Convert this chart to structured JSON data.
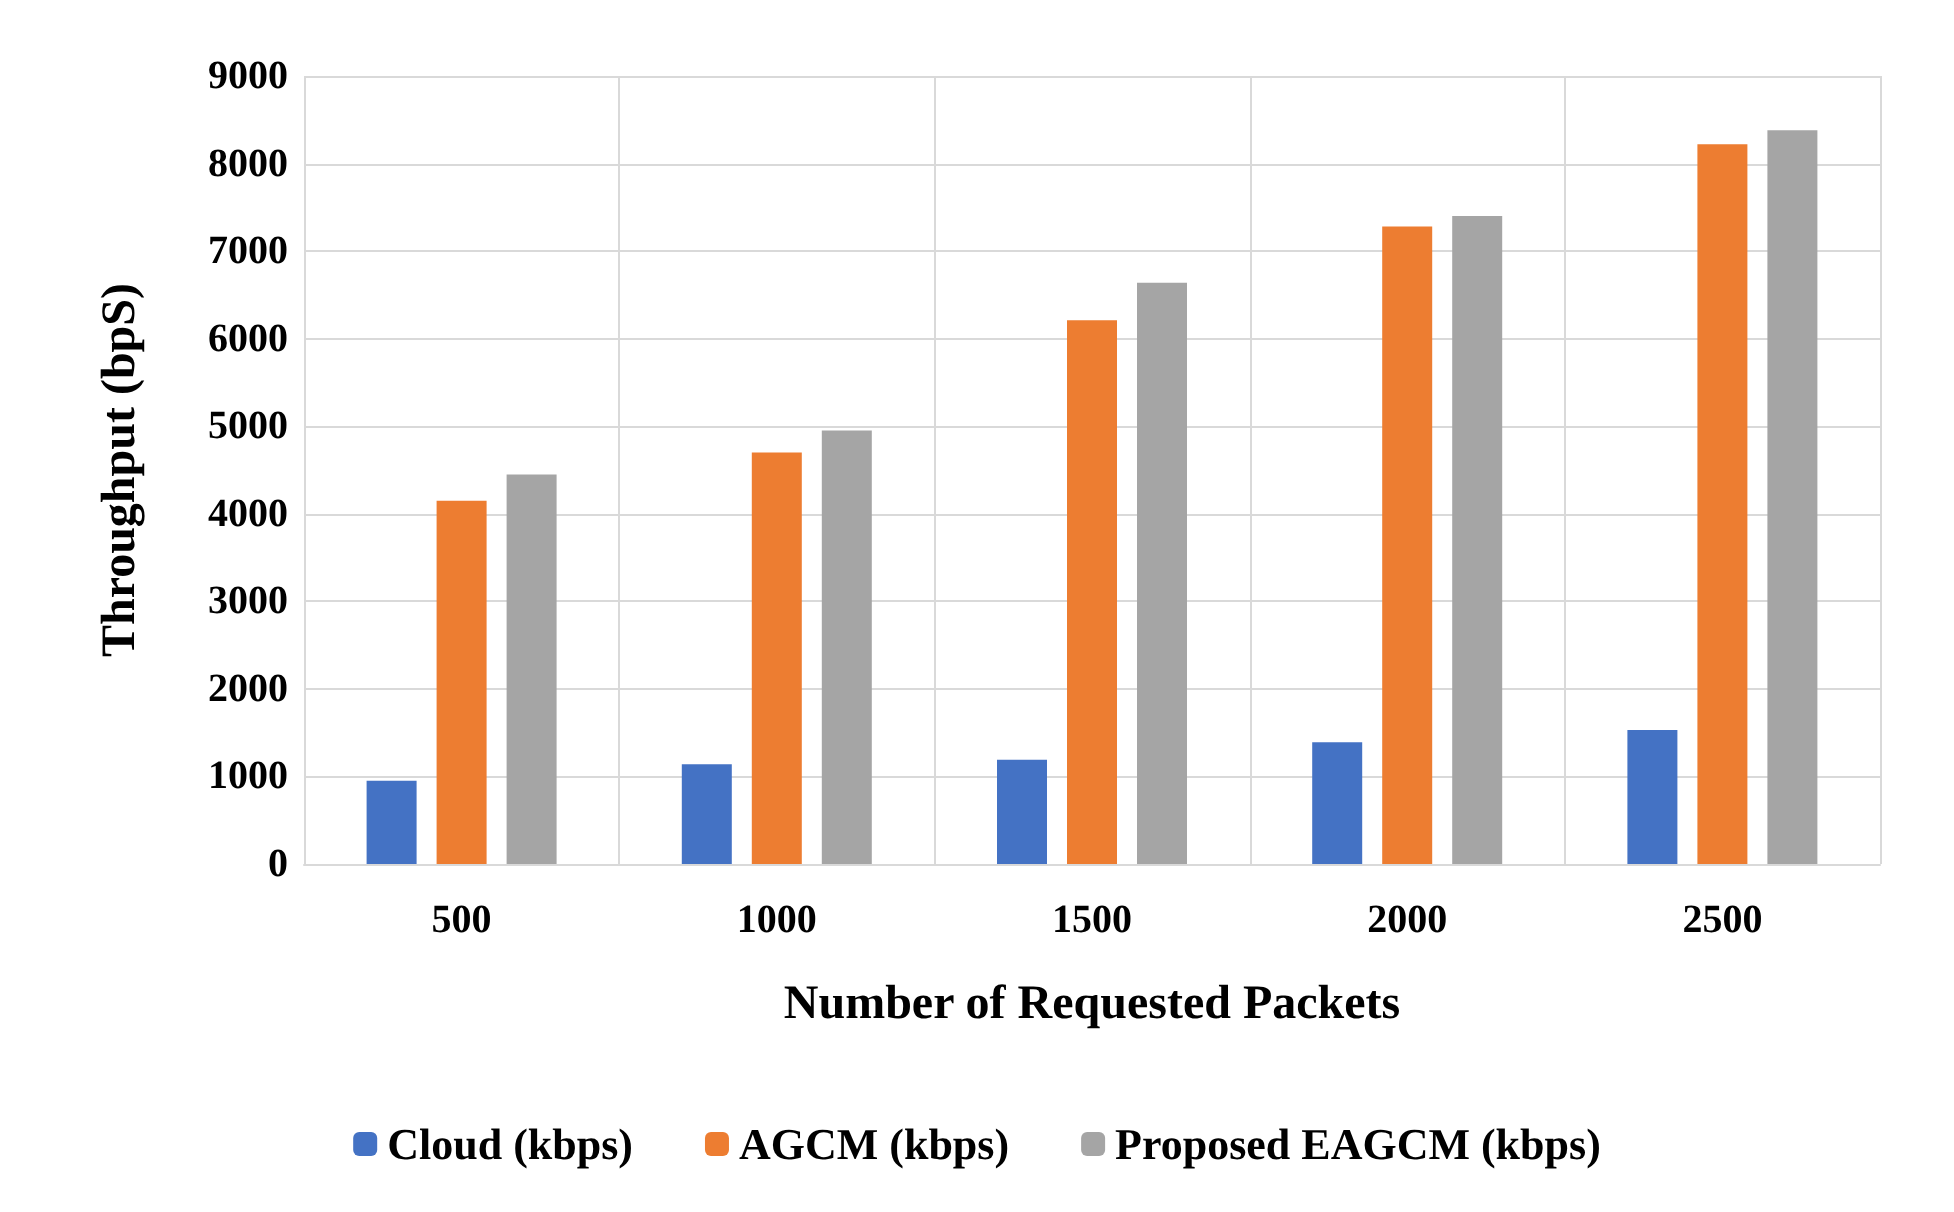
{
  "chart_data": {
    "type": "bar",
    "xlabel": "Number of Requested Packets",
    "ylabel": "Throughput (bpS)",
    "categories": [
      "500",
      "1000",
      "1500",
      "2000",
      "2500"
    ],
    "series": [
      {
        "name": "Cloud (kbps)",
        "color": "#4472c4",
        "values": [
          950,
          1140,
          1190,
          1390,
          1530
        ]
      },
      {
        "name": "AGCM (kbps)",
        "color": "#ed7d31",
        "values": [
          4150,
          4700,
          6210,
          7280,
          8220
        ]
      },
      {
        "name": "Proposed EAGCM (kbps)",
        "color": "#a5a5a5",
        "values": [
          4450,
          4950,
          6640,
          7400,
          8380
        ]
      }
    ],
    "ylim": [
      0,
      9000
    ],
    "yticks": [
      0,
      1000,
      2000,
      3000,
      4000,
      5000,
      6000,
      7000,
      8000,
      9000
    ],
    "grid": true,
    "legend": "bottom"
  }
}
